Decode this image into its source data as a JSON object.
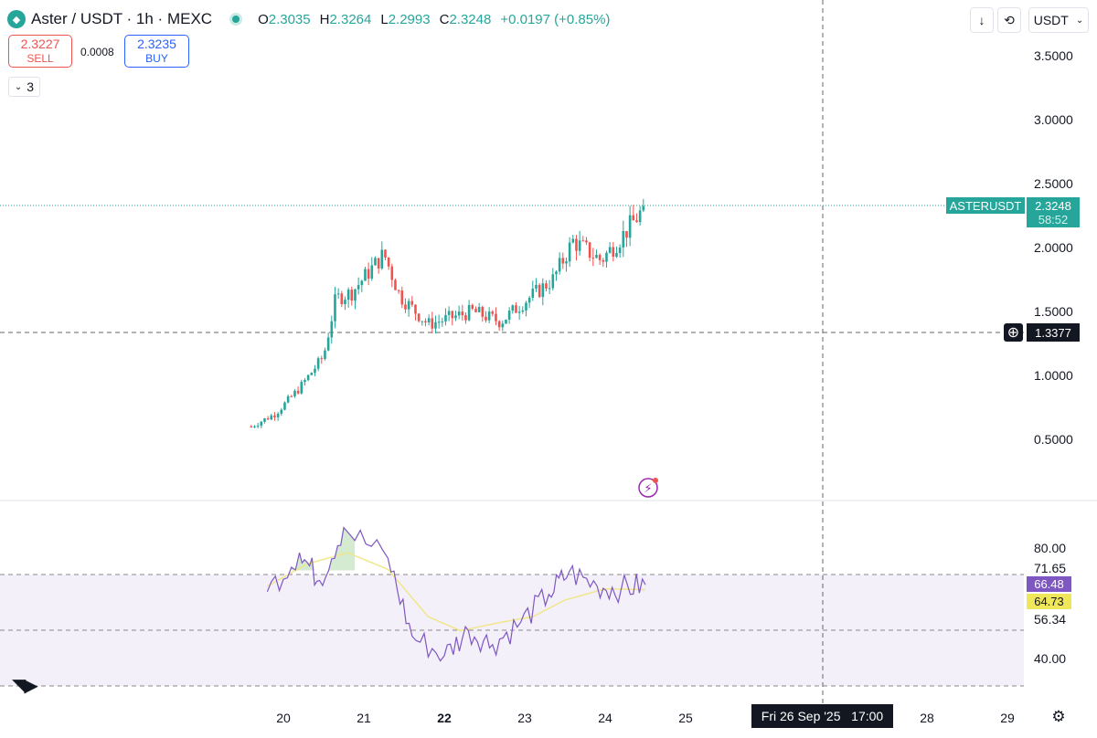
{
  "header": {
    "symbol_title": "Aster / USDT · 1h · MEXC",
    "o_label": "O",
    "o_value": "2.3035",
    "h_label": "H",
    "h_value": "2.3264",
    "l_label": "L",
    "l_value": "2.2993",
    "c_label": "C",
    "c_value": "2.3248",
    "change": "+0.0197 (+0.85%)"
  },
  "toolbar": {
    "download_icon": "arrow-down-icon",
    "refresh_icon": "refresh-icon",
    "currency": "USDT"
  },
  "trade": {
    "sell_price": "2.3227",
    "sell_label": "SELL",
    "spread": "0.0008",
    "buy_price": "2.3235",
    "buy_label": "BUY"
  },
  "indicators_count": "3",
  "price_axis": {
    "labels": [
      "3.5000",
      "3.0000",
      "2.5000",
      "2.0000",
      "1.5000",
      "1.0000",
      "0.5000"
    ],
    "last_symbol": "ASTERUSDT",
    "last_price": "2.3248",
    "countdown": "58:52",
    "crosshair_price": "1.3377"
  },
  "rsi_axis": {
    "labels": [
      "80.00",
      "71.65",
      "56.34",
      "40.00"
    ],
    "rsi_value": "66.48",
    "ma_value": "64.73"
  },
  "time_axis": {
    "labels": [
      "20",
      "21",
      "22",
      "23",
      "24",
      "25",
      "28",
      "29"
    ],
    "crosshair_time": "Fri 26 Sep '25   17:00"
  },
  "colors": {
    "up": "#26a69a",
    "down": "#ef5350",
    "rsi_line": "#7e57c2",
    "rsi_ma": "#f0e68c",
    "rsi_band": "#f3f0fa"
  },
  "chart_data": [
    {
      "type": "candlestick",
      "symbol": "ASTERUSDT",
      "interval": "1h",
      "ylim": [
        0.3,
        3.7
      ],
      "x_range_days": [
        "19",
        "29"
      ],
      "close_path": [
        {
          "day": 19.6,
          "price": 0.6
        },
        {
          "day": 19.9,
          "price": 0.7
        },
        {
          "day": 20.2,
          "price": 0.9
        },
        {
          "day": 20.5,
          "price": 1.15
        },
        {
          "day": 20.65,
          "price": 1.6
        },
        {
          "day": 20.85,
          "price": 1.65
        },
        {
          "day": 21.25,
          "price": 1.95
        },
        {
          "day": 21.45,
          "price": 1.62
        },
        {
          "day": 21.8,
          "price": 1.4
        },
        {
          "day": 22.35,
          "price": 1.5
        },
        {
          "day": 22.7,
          "price": 1.42
        },
        {
          "day": 23.0,
          "price": 1.58
        },
        {
          "day": 23.35,
          "price": 1.75
        },
        {
          "day": 23.6,
          "price": 2.05
        },
        {
          "day": 23.95,
          "price": 1.9
        },
        {
          "day": 24.2,
          "price": 2.08
        },
        {
          "day": 24.5,
          "price": 2.32
        }
      ],
      "last_close": 2.3248
    },
    {
      "type": "line",
      "indicator": "RSI",
      "ylim": [
        30,
        90
      ],
      "bands": [
        71.65,
        56.34
      ],
      "series": [
        {
          "values_by_day": [
            {
              "day": 19.8,
              "value": 64
            },
            {
              "day": 20.2,
              "value": 78
            },
            {
              "day": 20.45,
              "value": 68
            },
            {
              "day": 20.75,
              "value": 87
            },
            {
              "day": 21.3,
              "value": 76
            },
            {
              "day": 21.6,
              "value": 48
            },
            {
              "day": 22.0,
              "value": 41
            },
            {
              "day": 22.3,
              "value": 50
            },
            {
              "day": 22.6,
              "value": 45
            },
            {
              "day": 22.95,
              "value": 53
            },
            {
              "day": 23.3,
              "value": 63
            },
            {
              "day": 23.55,
              "value": 71
            },
            {
              "day": 23.9,
              "value": 66
            },
            {
              "day": 24.2,
              "value": 65
            },
            {
              "day": 24.5,
              "value": 66.48
            }
          ]
        },
        {
          "values_by_day": [
            {
              "day": 19.8,
              "value": 66
            },
            {
              "day": 20.3,
              "value": 74
            },
            {
              "day": 20.8,
              "value": 78
            },
            {
              "day": 21.3,
              "value": 72
            },
            {
              "day": 21.8,
              "value": 55
            },
            {
              "day": 22.2,
              "value": 50
            },
            {
              "day": 22.7,
              "value": 53
            },
            {
              "day": 23.1,
              "value": 55
            },
            {
              "day": 23.5,
              "value": 61
            },
            {
              "day": 24.0,
              "value": 65
            },
            {
              "day": 24.5,
              "value": 64.73
            }
          ]
        }
      ]
    }
  ]
}
